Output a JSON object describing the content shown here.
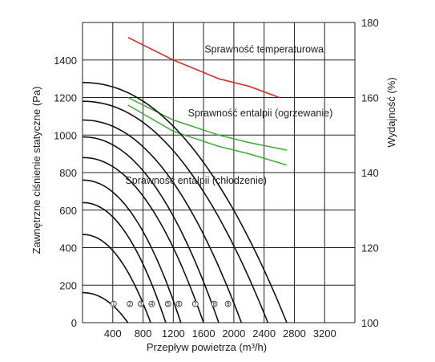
{
  "chart_data": {
    "type": "line",
    "xlabel": "Przepływ powietrza (m³/h)",
    "ylabel_left": "Zawnętrzne ciśnienie statyczne (Pa)",
    "ylabel_right": "Wydajność (%)",
    "x_ticks": [
      "400",
      "800",
      "1200",
      "1600",
      "2000",
      "2400",
      "2800",
      "3200"
    ],
    "y_left_ticks": [
      "0",
      "200",
      "400",
      "600",
      "800",
      "1000",
      "1200",
      "1400"
    ],
    "y_right_ticks": [
      "100",
      "120",
      "140",
      "160",
      "180"
    ],
    "xlim": [
      0,
      3600
    ],
    "ylim_left": [
      0,
      1600
    ],
    "ylim_right": [
      100,
      180
    ],
    "grid": true,
    "colors": {
      "temperature": "#e8231d",
      "enthalpy": "#3daa35",
      "pressure": "#111111"
    },
    "efficiency_series": [
      {
        "name": "Sprawność temperaturowa",
        "color": "#e8231d",
        "points": [
          [
            600,
            176
          ],
          [
            1200,
            170
          ],
          [
            1800,
            165
          ],
          [
            2200,
            163
          ],
          [
            2600,
            160
          ]
        ]
      },
      {
        "name": "Sprawność entalpii (ogrzewanie)",
        "color": "#3daa35",
        "points": [
          [
            600,
            160
          ],
          [
            1200,
            154
          ],
          [
            1800,
            150
          ],
          [
            2200,
            148
          ],
          [
            2700,
            146
          ]
        ]
      },
      {
        "name": "Sprawność entalpii (chłodzenie)",
        "color": "#3daa35",
        "points": [
          [
            600,
            158
          ],
          [
            1200,
            151
          ],
          [
            1800,
            147
          ],
          [
            2200,
            145
          ],
          [
            2700,
            142
          ]
        ]
      }
    ],
    "pressure_series": [
      {
        "name": "①",
        "max_pressure": 160,
        "max_flow": 600
      },
      {
        "name": "②",
        "max_pressure": 470,
        "max_flow": 900
      },
      {
        "name": "③",
        "max_pressure": 640,
        "max_flow": 1100
      },
      {
        "name": "④",
        "max_pressure": 760,
        "max_flow": 1300
      },
      {
        "name": "⑤",
        "max_pressure": 880,
        "max_flow": 1600
      },
      {
        "name": "⑥",
        "max_pressure": 990,
        "max_flow": 1800
      },
      {
        "name": "⑦",
        "max_pressure": 1080,
        "max_flow": 2100
      },
      {
        "name": "⑧",
        "max_pressure": 1180,
        "max_flow": 2450
      },
      {
        "name": "⑨",
        "max_pressure": 1280,
        "max_flow": 2700
      }
    ]
  }
}
